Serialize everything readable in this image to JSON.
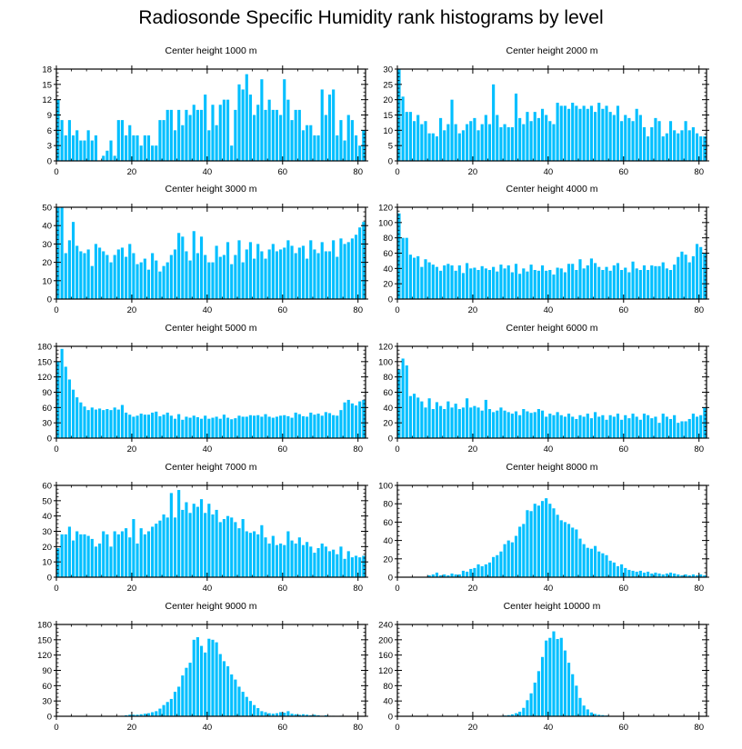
{
  "title": "Radiosonde Specific Humidity rank histograms by level",
  "chart_data": [
    {
      "type": "bar",
      "title": "Center height 1000 m",
      "xlim": [
        0,
        82
      ],
      "ylim": [
        0,
        18
      ],
      "yticks": [
        0,
        3,
        6,
        9,
        12,
        15,
        18
      ],
      "xticks": [
        0,
        20,
        40,
        60,
        80
      ],
      "values": [
        12,
        8,
        5,
        8,
        5,
        6,
        4,
        4,
        6,
        4,
        5,
        0,
        1,
        2,
        4,
        1,
        8,
        8,
        5,
        7,
        5,
        5,
        3,
        5,
        5,
        3,
        3,
        8,
        8,
        10,
        10,
        6,
        10,
        7,
        10,
        9,
        11,
        10,
        10,
        13,
        6,
        11,
        7,
        11,
        12,
        12,
        3,
        10,
        15,
        14,
        17,
        13,
        9,
        11,
        16,
        10,
        12,
        10,
        10,
        9,
        16,
        12,
        8,
        10,
        10,
        6,
        7,
        7,
        5,
        5,
        14,
        9,
        13,
        14,
        5,
        8,
        4,
        9,
        8,
        5,
        3,
        6
      ]
    },
    {
      "type": "bar",
      "title": "Center height 2000 m",
      "xlim": [
        0,
        82
      ],
      "ylim": [
        0,
        30
      ],
      "yticks": [
        0,
        5,
        10,
        15,
        20,
        25,
        30
      ],
      "xticks": [
        0,
        20,
        40,
        60,
        80
      ],
      "values": [
        30,
        21,
        16,
        16,
        13,
        15,
        12,
        13,
        9,
        9,
        8,
        14,
        10,
        12,
        20,
        12,
        9,
        10,
        12,
        13,
        14,
        10,
        12,
        15,
        12,
        25,
        15,
        11,
        12,
        11,
        11,
        22,
        14,
        12,
        16,
        13,
        16,
        14,
        17,
        15,
        13,
        12,
        19,
        18,
        18,
        17,
        19,
        18,
        17,
        18,
        17,
        18,
        16,
        19,
        17,
        18,
        16,
        15,
        18,
        13,
        15,
        14,
        13,
        17,
        15,
        11,
        8,
        11,
        14,
        13,
        8,
        9,
        13,
        10,
        9,
        10,
        13,
        10,
        11,
        9,
        8,
        8
      ]
    },
    {
      "type": "bar",
      "title": "Center height 3000 m",
      "xlim": [
        0,
        82
      ],
      "ylim": [
        0,
        50
      ],
      "yticks": [
        0,
        10,
        20,
        30,
        40,
        50
      ],
      "xticks": [
        0,
        20,
        40,
        60,
        80
      ],
      "values": [
        50,
        50,
        25,
        32,
        42,
        29,
        26,
        25,
        27,
        18,
        30,
        28,
        26,
        24,
        20,
        24,
        27,
        28,
        23,
        30,
        25,
        19,
        20,
        22,
        16,
        25,
        21,
        15,
        18,
        20,
        24,
        27,
        36,
        34,
        26,
        21,
        37,
        25,
        34,
        24,
        20,
        20,
        29,
        23,
        24,
        31,
        19,
        24,
        32,
        20,
        27,
        31,
        22,
        30,
        26,
        22,
        27,
        30,
        26,
        27,
        28,
        32,
        29,
        25,
        28,
        29,
        22,
        32,
        27,
        25,
        31,
        26,
        26,
        32,
        23,
        33,
        30,
        31,
        33,
        35,
        39,
        42
      ]
    },
    {
      "type": "bar",
      "title": "Center height 4000 m",
      "xlim": [
        0,
        82
      ],
      "ylim": [
        0,
        120
      ],
      "yticks": [
        0,
        20,
        40,
        60,
        80,
        100,
        120
      ],
      "xticks": [
        0,
        20,
        40,
        60,
        80
      ],
      "values": [
        112,
        80,
        80,
        58,
        54,
        56,
        42,
        52,
        48,
        45,
        42,
        37,
        44,
        46,
        44,
        37,
        44,
        34,
        47,
        40,
        41,
        38,
        43,
        40,
        38,
        42,
        36,
        45,
        40,
        44,
        35,
        46,
        33,
        40,
        36,
        45,
        38,
        37,
        44,
        37,
        38,
        32,
        41,
        40,
        35,
        46,
        46,
        38,
        52,
        40,
        44,
        53,
        47,
        42,
        38,
        42,
        37,
        44,
        47,
        38,
        41,
        35,
        49,
        40,
        38,
        44,
        38,
        44,
        43,
        43,
        48,
        40,
        38,
        45,
        55,
        62,
        58,
        48,
        56,
        72,
        68,
        60
      ]
    },
    {
      "type": "bar",
      "title": "Center height 5000 m",
      "xlim": [
        0,
        82
      ],
      "ylim": [
        0,
        180
      ],
      "yticks": [
        0,
        30,
        60,
        90,
        120,
        150,
        180
      ],
      "xticks": [
        0,
        20,
        40,
        60,
        80
      ],
      "values": [
        150,
        175,
        140,
        115,
        95,
        80,
        70,
        62,
        55,
        60,
        56,
        58,
        55,
        57,
        55,
        60,
        56,
        65,
        50,
        46,
        42,
        44,
        48,
        46,
        46,
        50,
        52,
        43,
        46,
        50,
        44,
        38,
        47,
        36,
        42,
        40,
        44,
        41,
        38,
        44,
        38,
        40,
        42,
        38,
        46,
        40,
        37,
        39,
        44,
        42,
        42,
        45,
        44,
        45,
        42,
        47,
        42,
        40,
        42,
        44,
        45,
        43,
        40,
        50,
        47,
        43,
        42,
        50,
        46,
        48,
        44,
        51,
        49,
        45,
        44,
        55,
        70,
        75,
        68,
        64,
        72,
        75
      ]
    },
    {
      "type": "bar",
      "title": "Center height 6000 m",
      "xlim": [
        0,
        82
      ],
      "ylim": [
        0,
        120
      ],
      "yticks": [
        0,
        20,
        40,
        60,
        80,
        100,
        120
      ],
      "xticks": [
        0,
        20,
        40,
        60,
        80
      ],
      "values": [
        90,
        104,
        95,
        55,
        58,
        53,
        48,
        40,
        52,
        38,
        47,
        42,
        38,
        48,
        40,
        45,
        38,
        40,
        52,
        40,
        42,
        40,
        36,
        50,
        38,
        34,
        36,
        40,
        36,
        34,
        32,
        35,
        30,
        38,
        35,
        33,
        34,
        38,
        36,
        28,
        32,
        30,
        34,
        30,
        28,
        32,
        28,
        25,
        30,
        28,
        32,
        26,
        34,
        28,
        30,
        24,
        30,
        28,
        32,
        24,
        30,
        26,
        32,
        28,
        24,
        32,
        30,
        26,
        28,
        20,
        32,
        28,
        25,
        30,
        20,
        22,
        22,
        25,
        32,
        28,
        30,
        40
      ]
    },
    {
      "type": "bar",
      "title": "Center height 7000 m",
      "xlim": [
        0,
        82
      ],
      "ylim": [
        0,
        60
      ],
      "yticks": [
        0,
        10,
        20,
        30,
        40,
        50,
        60
      ],
      "xticks": [
        0,
        20,
        40,
        60,
        80
      ],
      "values": [
        19,
        28,
        28,
        33,
        24,
        30,
        28,
        28,
        27,
        25,
        20,
        22,
        30,
        28,
        20,
        30,
        28,
        30,
        32,
        26,
        38,
        22,
        32,
        28,
        30,
        33,
        35,
        37,
        41,
        39,
        55,
        39,
        57,
        44,
        49,
        42,
        48,
        46,
        51,
        42,
        48,
        41,
        44,
        36,
        38,
        40,
        39,
        36,
        32,
        38,
        30,
        29,
        30,
        28,
        34,
        26,
        22,
        27,
        21,
        22,
        21,
        30,
        24,
        22,
        26,
        21,
        23,
        20,
        16,
        19,
        22,
        20,
        17,
        18,
        15,
        20,
        12,
        17,
        13,
        14,
        13,
        14
      ]
    },
    {
      "type": "bar",
      "title": "Center height 8000 m",
      "xlim": [
        0,
        82
      ],
      "ylim": [
        0,
        100
      ],
      "yticks": [
        0,
        20,
        40,
        60,
        80,
        100
      ],
      "xticks": [
        0,
        20,
        40,
        60,
        80
      ],
      "values": [
        0,
        0,
        0,
        0,
        0,
        0,
        0,
        0,
        2,
        3,
        5,
        2,
        3,
        2,
        4,
        3,
        3,
        7,
        6,
        9,
        10,
        14,
        12,
        14,
        16,
        22,
        24,
        28,
        36,
        40,
        38,
        45,
        55,
        58,
        73,
        72,
        80,
        78,
        83,
        86,
        80,
        75,
        68,
        62,
        60,
        58,
        54,
        52,
        42,
        36,
        32,
        31,
        34,
        28,
        26,
        24,
        18,
        16,
        12,
        14,
        10,
        8,
        7,
        6,
        7,
        5,
        6,
        4,
        5,
        4,
        3,
        4,
        5,
        4,
        3,
        2,
        3,
        2,
        3,
        2,
        3,
        2
      ]
    },
    {
      "type": "bar",
      "title": "Center height 9000 m",
      "xlim": [
        0,
        82
      ],
      "ylim": [
        0,
        180
      ],
      "yticks": [
        0,
        30,
        60,
        90,
        120,
        150,
        180
      ],
      "xticks": [
        0,
        20,
        40,
        60,
        80
      ],
      "values": [
        0,
        0,
        0,
        0,
        0,
        0,
        0,
        0,
        0,
        0,
        0,
        0,
        0,
        0,
        0,
        0,
        0,
        1,
        2,
        3,
        3,
        3,
        4,
        5,
        6,
        8,
        10,
        15,
        22,
        28,
        34,
        48,
        58,
        80,
        95,
        105,
        150,
        155,
        138,
        125,
        152,
        150,
        145,
        122,
        108,
        98,
        82,
        72,
        58,
        48,
        38,
        30,
        22,
        16,
        10,
        8,
        6,
        5,
        6,
        8,
        7,
        10,
        5,
        4,
        3,
        4,
        3,
        2,
        3,
        2,
        1,
        2,
        1,
        1,
        0,
        1,
        0,
        0,
        0,
        0,
        0,
        0
      ]
    },
    {
      "type": "bar",
      "title": "Center height 10000 m",
      "xlim": [
        0,
        82
      ],
      "ylim": [
        0,
        240
      ],
      "yticks": [
        0,
        40,
        80,
        120,
        160,
        200,
        240
      ],
      "xticks": [
        0,
        20,
        40,
        60,
        80
      ],
      "values": [
        0,
        0,
        0,
        0,
        0,
        0,
        0,
        0,
        0,
        0,
        0,
        0,
        0,
        0,
        0,
        0,
        0,
        0,
        0,
        0,
        0,
        0,
        0,
        0,
        0,
        0,
        0,
        1,
        2,
        3,
        5,
        8,
        12,
        22,
        42,
        60,
        88,
        118,
        155,
        198,
        205,
        222,
        202,
        205,
        172,
        140,
        110,
        80,
        48,
        28,
        18,
        10,
        6,
        4,
        3,
        2,
        1,
        1,
        0,
        0,
        0,
        0,
        0,
        0,
        0,
        0,
        0,
        0,
        0,
        0,
        0,
        0,
        0,
        0,
        0,
        0,
        0,
        0,
        0,
        0,
        0,
        0
      ]
    }
  ]
}
